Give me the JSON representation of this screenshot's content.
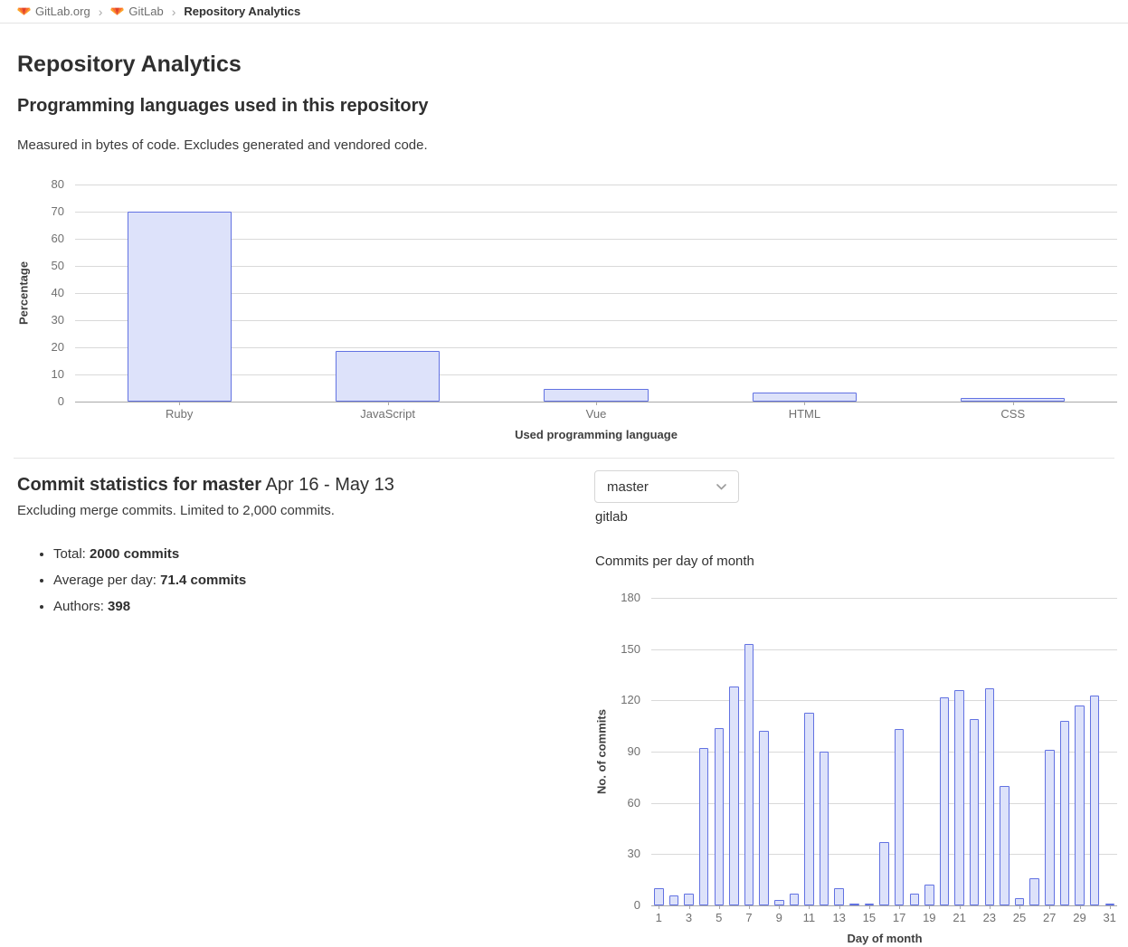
{
  "breadcrumb": {
    "separator": "›",
    "items": [
      {
        "label": "GitLab.org"
      },
      {
        "label": "GitLab"
      },
      {
        "label": "Repository Analytics"
      }
    ]
  },
  "page": {
    "title": "Repository Analytics"
  },
  "languages_section": {
    "heading": "Programming languages used in this repository",
    "subtitle": "Measured in bytes of code. Excludes generated and vendored code."
  },
  "commit_section": {
    "heading_main": "Commit statistics for master",
    "heading_range": " Apr 16 - May 13",
    "subtitle": "Excluding merge commits. Limited to 2,000 commits.",
    "stats": [
      {
        "label": "Total: ",
        "value": "2000 commits"
      },
      {
        "label": "Average per day: ",
        "value": "71.4 commits"
      },
      {
        "label": "Authors: ",
        "value": "398"
      }
    ],
    "branch_dropdown": {
      "value": "master"
    },
    "project_label": "gitlab"
  },
  "colors": {
    "bar_fill": "#dde2fa",
    "bar_stroke": "#6272e2",
    "gridline": "#d9d9d9",
    "axis_line": "#a8a8a8",
    "brand_orange": "#fc6d26",
    "brand_red": "#e24329",
    "brand_yellow": "#fca326"
  },
  "chart_data": [
    {
      "type": "bar",
      "title": "",
      "categories": [
        "Ruby",
        "JavaScript",
        "Vue",
        "HTML",
        "CSS"
      ],
      "values": [
        70.1,
        18.7,
        4.8,
        3.3,
        1.2
      ],
      "xlabel": "Used programming language",
      "ylabel": "Percentage",
      "ylim": [
        0,
        80
      ],
      "ytick_step": 10,
      "grid": true,
      "legend": "none"
    },
    {
      "type": "bar",
      "title": "Commits per day of month",
      "x": [
        1,
        2,
        3,
        4,
        5,
        6,
        7,
        8,
        9,
        10,
        11,
        12,
        13,
        14,
        15,
        16,
        17,
        18,
        19,
        20,
        21,
        22,
        23,
        24,
        25,
        26,
        27,
        28,
        29,
        30,
        31
      ],
      "values": [
        10,
        6,
        7,
        92,
        104,
        128,
        153,
        102,
        3,
        7,
        113,
        90,
        10,
        1,
        1,
        37,
        103,
        7,
        12,
        122,
        126,
        109,
        127,
        70,
        4,
        16,
        91,
        108,
        117,
        123,
        1
      ],
      "xlabel": "Day of month",
      "ylabel": "No. of commits",
      "ylim": [
        0,
        180
      ],
      "ytick_step": 30,
      "grid": true,
      "legend": "none"
    }
  ]
}
